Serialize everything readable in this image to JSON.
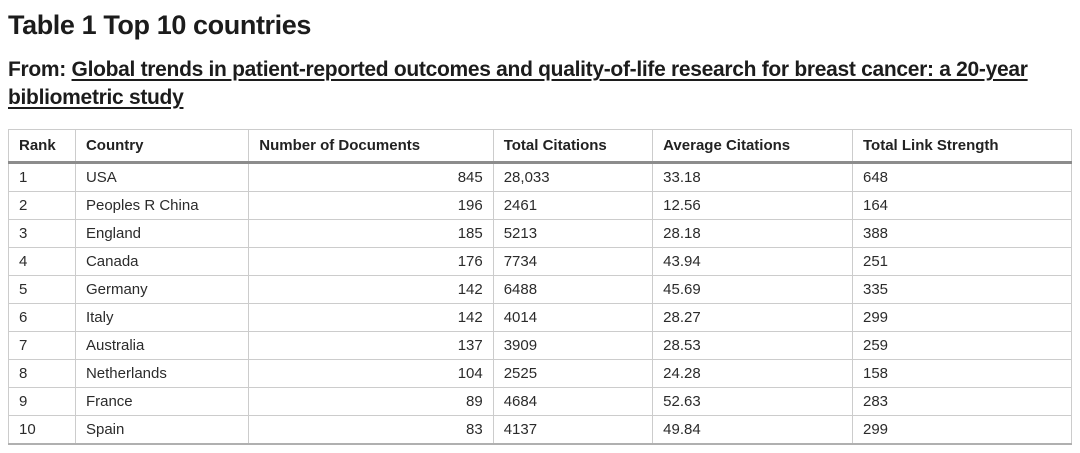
{
  "title": "Table 1 Top 10 countries",
  "subtitle": {
    "prefix": "From: ",
    "article_link": "Global trends in patient-reported outcomes and quality-of-life research for breast cancer: a 20-year bibliometric study"
  },
  "table": {
    "columns": [
      "Rank",
      "Country",
      "Number of Documents",
      "Total Citations",
      "Average Citations",
      "Total Link Strength"
    ],
    "rows": [
      {
        "rank": "1",
        "country": "USA",
        "documents": "845",
        "total_citations": "28,033",
        "average_citations": "33.18",
        "total_link_strength": "648"
      },
      {
        "rank": "2",
        "country": "Peoples R China",
        "documents": "196",
        "total_citations": "2461",
        "average_citations": "12.56",
        "total_link_strength": "164"
      },
      {
        "rank": "3",
        "country": "England",
        "documents": "185",
        "total_citations": "5213",
        "average_citations": "28.18",
        "total_link_strength": "388"
      },
      {
        "rank": "4",
        "country": "Canada",
        "documents": "176",
        "total_citations": "7734",
        "average_citations": "43.94",
        "total_link_strength": "251"
      },
      {
        "rank": "5",
        "country": "Germany",
        "documents": "142",
        "total_citations": "6488",
        "average_citations": "45.69",
        "total_link_strength": "335"
      },
      {
        "rank": "6",
        "country": "Italy",
        "documents": "142",
        "total_citations": "4014",
        "average_citations": "28.27",
        "total_link_strength": "299"
      },
      {
        "rank": "7",
        "country": "Australia",
        "documents": "137",
        "total_citations": "3909",
        "average_citations": "28.53",
        "total_link_strength": "259"
      },
      {
        "rank": "8",
        "country": "Netherlands",
        "documents": "104",
        "total_citations": "2525",
        "average_citations": "24.28",
        "total_link_strength": "158"
      },
      {
        "rank": "9",
        "country": "France",
        "documents": "89",
        "total_citations": "4684",
        "average_citations": "52.63",
        "total_link_strength": "283"
      },
      {
        "rank": "10",
        "country": "Spain",
        "documents": "83",
        "total_citations": "4137",
        "average_citations": "49.84",
        "total_link_strength": "299"
      }
    ]
  },
  "colors": {
    "text": "#1c1c1c",
    "table_text": "#2b2b2b",
    "border_light": "#cccccc",
    "border_dark": "#8c8c8c",
    "background": "#ffffff"
  }
}
